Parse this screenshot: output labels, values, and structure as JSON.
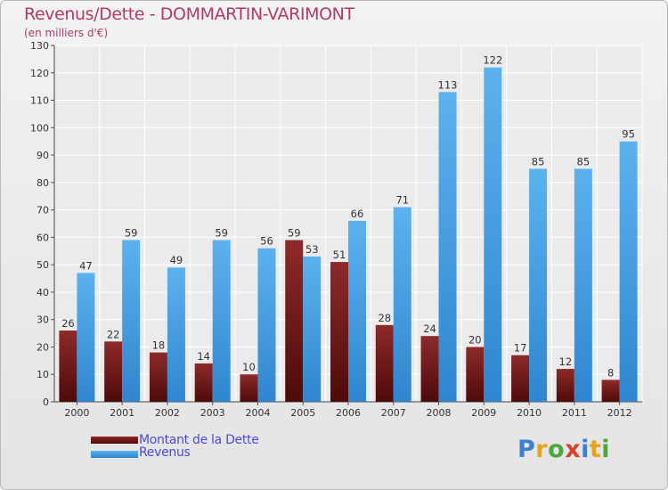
{
  "title": "Revenus/Dette - DOMMARTIN-VARIMONT",
  "subtitle": "(en milliers d'€)",
  "logo": "Proxiti",
  "colors": {
    "dette": "#7b1c1c",
    "revenus": "#4aa3e4",
    "title": "#b03a6a",
    "legend_text": "#4a4ad8"
  },
  "chart_data": {
    "type": "bar",
    "categories": [
      "2000",
      "2001",
      "2002",
      "2003",
      "2004",
      "2005",
      "2006",
      "2007",
      "2008",
      "2009",
      "2010",
      "2011",
      "2012"
    ],
    "series": [
      {
        "name": "Montant de la Dette",
        "values": [
          26,
          22,
          18,
          14,
          10,
          59,
          51,
          28,
          24,
          20,
          17,
          12,
          8
        ]
      },
      {
        "name": "Revenus",
        "values": [
          47,
          59,
          49,
          59,
          56,
          53,
          66,
          71,
          113,
          122,
          85,
          85,
          95
        ]
      }
    ],
    "ylim": [
      0,
      130
    ],
    "yticks": [
      0,
      10,
      20,
      30,
      40,
      50,
      60,
      70,
      80,
      90,
      100,
      110,
      120,
      130
    ],
    "grid": true,
    "legend": "bottom-left"
  }
}
